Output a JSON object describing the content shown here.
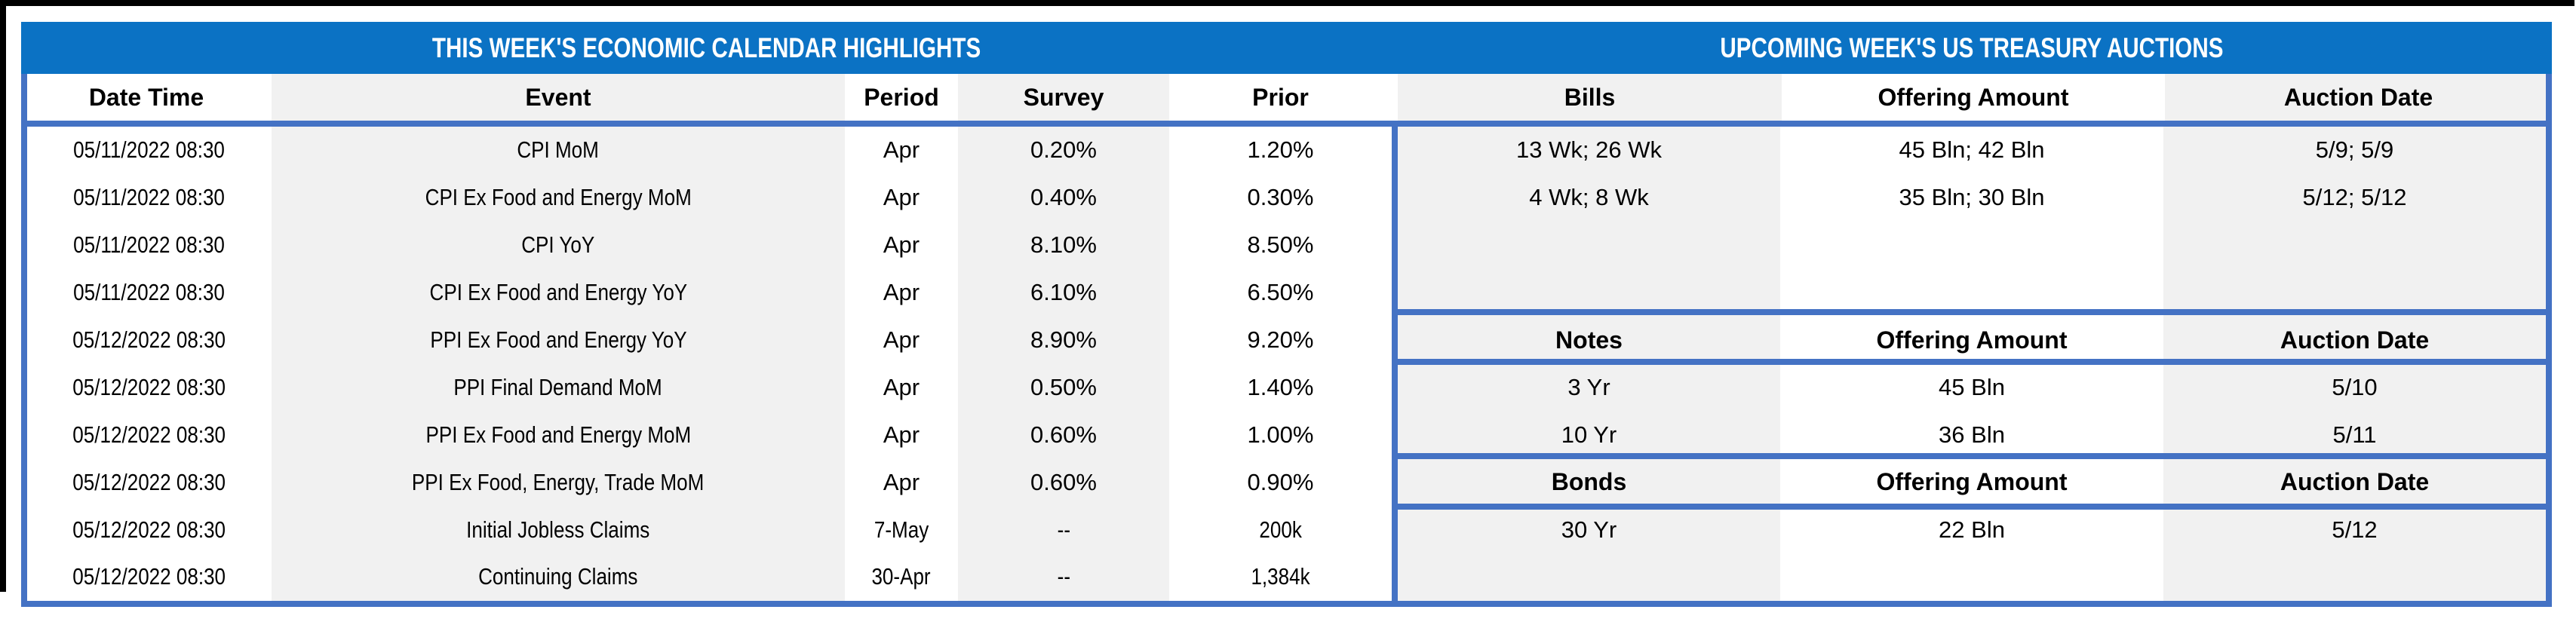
{
  "colors": {
    "banner_blue": "#0B72C4",
    "rule_blue": "#4472C4",
    "band_gray": "#F1F1F1",
    "frame_black": "#000000"
  },
  "left": {
    "title": "THIS WEEK'S ECONOMIC CALENDAR HIGHLIGHTS",
    "headers": {
      "date": "Date Time",
      "event": "Event",
      "period": "Period",
      "survey": "Survey",
      "prior": "Prior"
    },
    "rows": [
      {
        "date": "05/11/2022 08:30",
        "event": "CPI MoM",
        "period": "Apr",
        "survey": "0.20%",
        "prior": "1.20%"
      },
      {
        "date": "05/11/2022 08:30",
        "event": "CPI Ex Food and Energy MoM",
        "period": "Apr",
        "survey": "0.40%",
        "prior": "0.30%"
      },
      {
        "date": "05/11/2022 08:30",
        "event": "CPI YoY",
        "period": "Apr",
        "survey": "8.10%",
        "prior": "8.50%"
      },
      {
        "date": "05/11/2022 08:30",
        "event": "CPI Ex Food and Energy YoY",
        "period": "Apr",
        "survey": "6.10%",
        "prior": "6.50%"
      },
      {
        "date": "05/12/2022 08:30",
        "event": "PPI Ex Food and Energy YoY",
        "period": "Apr",
        "survey": "8.90%",
        "prior": "9.20%"
      },
      {
        "date": "05/12/2022 08:30",
        "event": "PPI Final Demand MoM",
        "period": "Apr",
        "survey": "0.50%",
        "prior": "1.40%"
      },
      {
        "date": "05/12/2022 08:30",
        "event": "PPI Ex Food and Energy MoM",
        "period": "Apr",
        "survey": "0.60%",
        "prior": "1.00%"
      },
      {
        "date": "05/12/2022 08:30",
        "event": "PPI Ex Food, Energy, Trade MoM",
        "period": "Apr",
        "survey": "0.60%",
        "prior": "0.90%"
      },
      {
        "date": "05/12/2022 08:30",
        "event": "Initial Jobless Claims",
        "period": "7-May",
        "survey": "--",
        "prior": "200k"
      },
      {
        "date": "05/12/2022 08:30",
        "event": "Continuing Claims",
        "period": "30-Apr",
        "survey": "--",
        "prior": "1,384k"
      }
    ]
  },
  "right": {
    "title": "UPCOMING WEEK'S US TREASURY AUCTIONS",
    "bills": {
      "header": {
        "type": "Bills",
        "amount": "Offering Amount",
        "date": "Auction Date"
      },
      "rows": [
        {
          "type": "13 Wk; 26 Wk",
          "amount": "45 Bln; 42 Bln",
          "date": "5/9; 5/9"
        },
        {
          "type": "4 Wk; 8 Wk",
          "amount": "35 Bln; 30 Bln",
          "date": "5/12; 5/12"
        }
      ]
    },
    "notes": {
      "header": {
        "type": "Notes",
        "amount": "Offering Amount",
        "date": "Auction Date"
      },
      "rows": [
        {
          "type": "3 Yr",
          "amount": "45 Bln",
          "date": "5/10"
        },
        {
          "type": "10 Yr",
          "amount": "36 Bln",
          "date": "5/11"
        }
      ]
    },
    "bonds": {
      "header": {
        "type": "Bonds",
        "amount": "Offering Amount",
        "date": "Auction Date"
      },
      "rows": [
        {
          "type": "30 Yr",
          "amount": "22 Bln",
          "date": "5/12"
        }
      ]
    }
  }
}
